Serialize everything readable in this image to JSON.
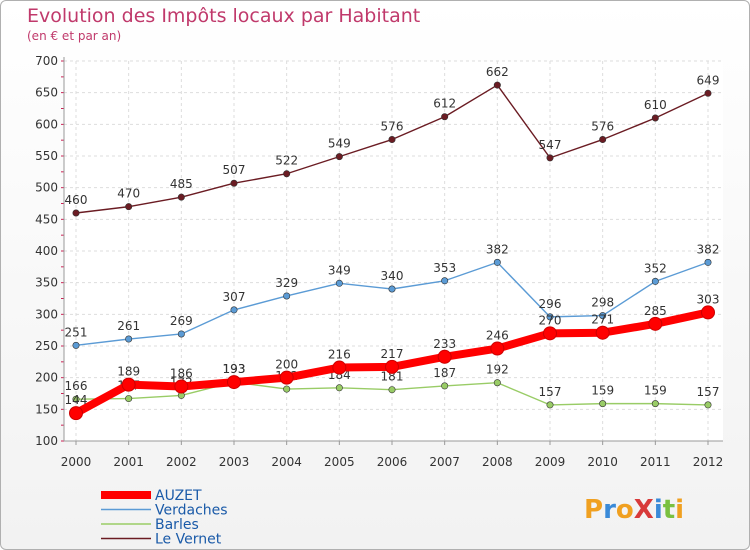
{
  "title": "Evolution des Impôts locaux par Habitant",
  "subtitle": "(en € et par an)",
  "logo_text": "ProXiti",
  "chart_data": {
    "type": "line",
    "x": [
      "2000",
      "2001",
      "2002",
      "2003",
      "2004",
      "2005",
      "2006",
      "2007",
      "2008",
      "2009",
      "2010",
      "2011",
      "2012"
    ],
    "ylim": [
      100,
      700
    ],
    "yticks": [
      100,
      150,
      200,
      250,
      300,
      350,
      400,
      450,
      500,
      550,
      600,
      650,
      700
    ],
    "grid": true,
    "legend_position": "bottom-left",
    "series": [
      {
        "name": "Le Vernet",
        "color": "#6b1c23",
        "values": [
          460,
          470,
          485,
          507,
          522,
          549,
          576,
          612,
          662,
          547,
          576,
          610,
          649
        ]
      },
      {
        "name": "Verdaches",
        "color": "#5b9bd5",
        "values": [
          251,
          261,
          269,
          307,
          329,
          349,
          340,
          353,
          382,
          296,
          298,
          352,
          382
        ]
      },
      {
        "name": "Barles",
        "color": "#99cc66",
        "values": [
          166,
          167,
          172,
          193,
          182,
          184,
          181,
          187,
          192,
          157,
          159,
          159,
          157
        ]
      },
      {
        "name": "AUZET",
        "color": "#ff0000",
        "values": [
          144,
          189,
          186,
          193,
          200,
          216,
          217,
          233,
          246,
          270,
          271,
          285,
          303
        ]
      }
    ]
  }
}
